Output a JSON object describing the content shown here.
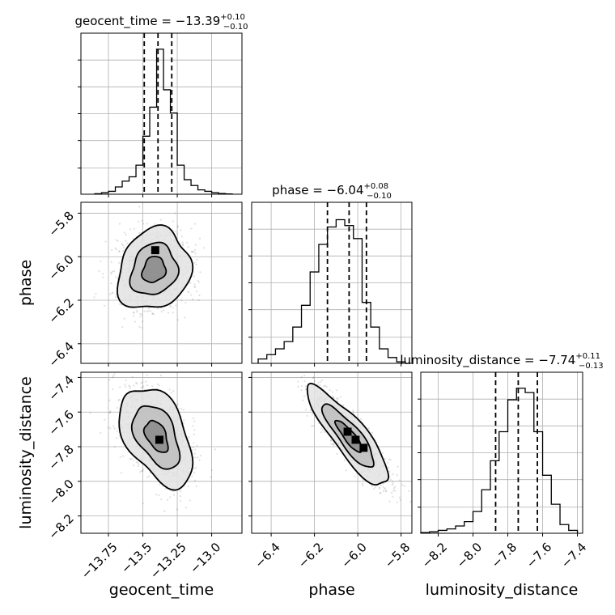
{
  "figure": {
    "type": "corner_plot",
    "background": "#ffffff",
    "ink_color": "#000000",
    "grid": true
  },
  "chart_data": [
    {
      "type": "histogram",
      "parameter": "geocent_time",
      "title": {
        "name": "geocent_time",
        "eq": " = ",
        "value": "−13.39",
        "plus": "+0.10",
        "minus": "−0.10"
      },
      "xlim": [
        -13.95,
        -12.78
      ],
      "bin_edges": [
        -13.85,
        -13.8,
        -13.75,
        -13.7,
        -13.65,
        -13.6,
        -13.55,
        -13.5,
        -13.45,
        -13.4,
        -13.35,
        -13.3,
        -13.25,
        -13.2,
        -13.15,
        -13.1,
        -13.05,
        -13.0,
        -12.95,
        -12.9,
        -12.85
      ],
      "counts": [
        0.003,
        0.01,
        0.02,
        0.05,
        0.09,
        0.12,
        0.2,
        0.4,
        0.6,
        1.0,
        0.72,
        0.56,
        0.2,
        0.1,
        0.06,
        0.03,
        0.02,
        0.01,
        0.005,
        0.002
      ],
      "quantiles": [
        -13.49,
        -13.39,
        -13.29
      ],
      "xticks": [
        -13.75,
        -13.5,
        -13.25,
        -13.0
      ]
    },
    {
      "type": "histogram",
      "parameter": "phase",
      "title": {
        "name": "phase",
        "eq": " = ",
        "value": "−6.04",
        "plus": "+0.08",
        "minus": "−0.10"
      },
      "xlim": [
        -6.49,
        -5.75
      ],
      "bin_edges": [
        -6.46,
        -6.42,
        -6.38,
        -6.34,
        -6.3,
        -6.26,
        -6.22,
        -6.18,
        -6.14,
        -6.1,
        -6.06,
        -6.02,
        -5.98,
        -5.94,
        -5.9,
        -5.86,
        -5.82,
        -5.78
      ],
      "counts": [
        0.03,
        0.06,
        0.1,
        0.15,
        0.25,
        0.4,
        0.63,
        0.82,
        0.94,
        0.99,
        0.95,
        0.86,
        0.42,
        0.25,
        0.1,
        0.04,
        0.01
      ],
      "quantiles": [
        -6.14,
        -6.04,
        -5.96
      ],
      "xticks": [
        -6.4,
        -6.2,
        -6.0,
        -5.8
      ]
    },
    {
      "type": "histogram",
      "parameter": "luminosity_distance",
      "title": {
        "name": "luminosity_distance",
        "eq": " = ",
        "value": "−7.74",
        "plus": "+0.11",
        "minus": "−0.13"
      },
      "xlim": [
        -8.3,
        -7.37
      ],
      "bin_edges": [
        -8.3,
        -8.25,
        -8.2,
        -8.15,
        -8.1,
        -8.05,
        -8.0,
        -7.95,
        -7.9,
        -7.85,
        -7.8,
        -7.75,
        -7.7,
        -7.65,
        -7.6,
        -7.55,
        -7.5,
        -7.45,
        -7.4
      ],
      "counts": [
        0.005,
        0.01,
        0.02,
        0.03,
        0.05,
        0.08,
        0.15,
        0.3,
        0.5,
        0.7,
        0.92,
        1.0,
        0.97,
        0.7,
        0.4,
        0.2,
        0.06,
        0.02
      ],
      "quantiles": [
        -7.87,
        -7.74,
        -7.63
      ],
      "xticks": [
        -8.2,
        -8.0,
        -7.8,
        -7.6,
        -7.4
      ]
    },
    {
      "type": "scatter_2d",
      "x_param": "geocent_time",
      "y_param": "phase",
      "xlim": [
        -13.95,
        -12.78
      ],
      "ylim": [
        -6.49,
        -5.75
      ],
      "center": [
        -13.42,
        -6.06
      ],
      "sigma": [
        0.12,
        0.085
      ],
      "rho": 0.15,
      "peak": [
        -13.41,
        -5.97
      ],
      "yticks": [
        -6.4,
        -6.2,
        -6.0,
        -5.8
      ]
    },
    {
      "type": "scatter_2d",
      "x_param": "geocent_time",
      "y_param": "luminosity_distance",
      "xlim": [
        -13.95,
        -12.78
      ],
      "ylim": [
        -8.3,
        -7.37
      ],
      "center": [
        -13.4,
        -7.74
      ],
      "sigma": [
        0.12,
        0.13
      ],
      "rho": -0.45,
      "peak": [
        -13.38,
        -7.76
      ],
      "yticks": [
        -8.2,
        -8.0,
        -7.8,
        -7.6,
        -7.4
      ]
    },
    {
      "type": "scatter_2d",
      "x_param": "phase",
      "y_param": "luminosity_distance",
      "xlim": [
        -6.49,
        -5.75
      ],
      "ylim": [
        -8.3,
        -7.37
      ],
      "center": [
        -6.04,
        -7.74
      ],
      "sigma": [
        0.085,
        0.13
      ],
      "rho": -0.86,
      "peak": [
        -6.01,
        -7.76
      ]
    }
  ]
}
